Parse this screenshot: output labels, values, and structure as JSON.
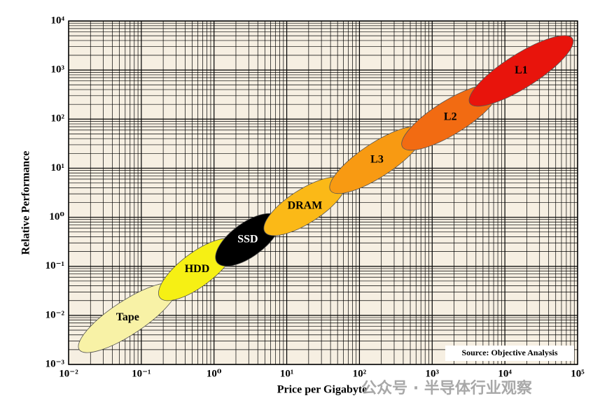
{
  "chart_data": {
    "type": "ellipse",
    "xlabel": "Price per Gigabyte",
    "ylabel": "Relative Performance",
    "source": "Source: Objective Analysis",
    "watermark": "公众号 · 半导体行业观察",
    "xscale": "log",
    "yscale": "log",
    "grid": true,
    "xlim": [
      0.01,
      100000
    ],
    "ylim": [
      0.001,
      10000
    ],
    "xticks": [
      {
        "value": 0.01,
        "label": "10⁻²"
      },
      {
        "value": 0.1,
        "label": "10⁻¹"
      },
      {
        "value": 1,
        "label": "10⁰"
      },
      {
        "value": 10,
        "label": "10¹"
      },
      {
        "value": 100,
        "label": "10²"
      },
      {
        "value": 1000,
        "label": "10³"
      },
      {
        "value": 10000,
        "label": "10⁴"
      },
      {
        "value": 100000,
        "label": "10⁵"
      }
    ],
    "yticks": [
      {
        "value": 0.001,
        "label": "10⁻³"
      },
      {
        "value": 0.01,
        "label": "10⁻²"
      },
      {
        "value": 0.1,
        "label": "10⁻¹"
      },
      {
        "value": 1,
        "label": "10⁰"
      },
      {
        "value": 10,
        "label": "10¹"
      },
      {
        "value": 100,
        "label": "10²"
      },
      {
        "value": 1000,
        "label": "10³"
      },
      {
        "value": 10000,
        "label": "10⁴"
      }
    ],
    "series": [
      {
        "name": "Tape",
        "color": "#f8f2a6",
        "label_color": "#000000",
        "x": [
          0.014,
          0.3
        ],
        "y": [
          0.002,
          0.04
        ]
      },
      {
        "name": "HDD",
        "color": "#f6f014",
        "label_color": "#000000",
        "x": [
          0.18,
          1.9
        ],
        "y": [
          0.023,
          0.32
        ]
      },
      {
        "name": "SSD",
        "color": "#000000",
        "label_color": "#ffffff",
        "x": [
          1.1,
          7.7
        ],
        "y": [
          0.12,
          1.0
        ]
      },
      {
        "name": "DRAM",
        "color": "#fbb917",
        "label_color": "#000000",
        "x": [
          5,
          63
        ],
        "y": [
          0.5,
          5.6
        ]
      },
      {
        "name": "L3",
        "color": "#f89a12",
        "label_color": "#000000",
        "x": [
          40,
          760
        ],
        "y": [
          3.5,
          62
        ]
      },
      {
        "name": "L2",
        "color": "#f26b12",
        "label_color": "#000000",
        "x": [
          390,
          8100
        ],
        "y": [
          27,
          440
        ]
      },
      {
        "name": "L1",
        "color": "#e8140c",
        "label_color": "#000000",
        "x": [
          3300,
          85000
        ],
        "y": [
          210,
          4400
        ]
      }
    ]
  }
}
